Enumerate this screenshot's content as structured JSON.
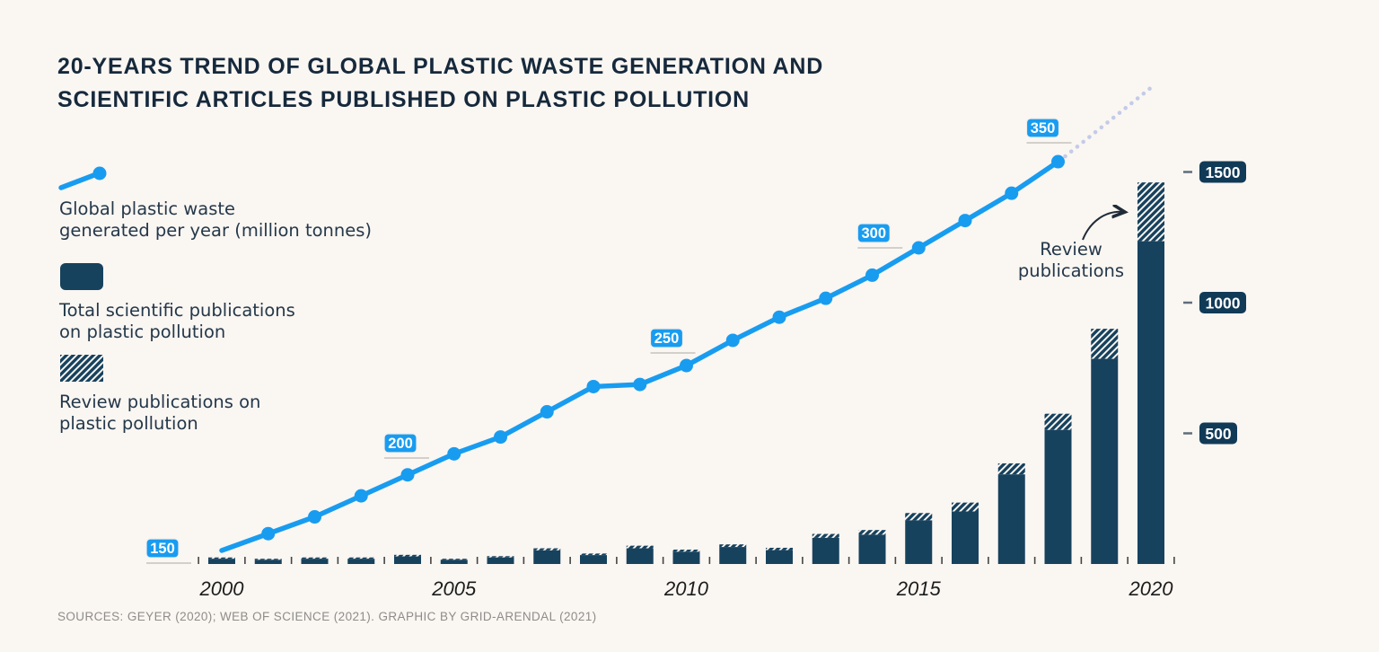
{
  "title": {
    "line1": "20-YEARS TREND OF GLOBAL PLASTIC WASTE GENERATION AND",
    "line2": "SCIENTIFIC ARTICLES PUBLISHED ON PLASTIC POLLUTION"
  },
  "legend": {
    "waste_line": {
      "line1": "Global plastic waste",
      "line2": "generated per year (million tonnes)"
    },
    "total_publications": {
      "line1": "Total scientific publications",
      "line2": "on plastic pollution"
    },
    "review_publications": {
      "line1": "Review publications on",
      "line2": "plastic pollution"
    }
  },
  "annotation": {
    "line1": "Review",
    "line2": "publications"
  },
  "sources": "SOURCES: GEYER (2020); WEB OF SCIENCE (2021). GRAPHIC BY GRID-ARENDAL (2021)",
  "colors": {
    "background": "#faf6f2",
    "accent_blue": "#189cf0",
    "bar_navy": "#17425e",
    "badge_navy": "#113a57",
    "projection_dotted": "#c3cbe8",
    "text_navy": "#24384a",
    "gridline_gray": "#c6c2be",
    "tick_dark": "#444444",
    "sources_gray": "#8f8c89"
  },
  "chart_data": {
    "type": "combo: line + stacked bar",
    "years": [
      2000,
      2001,
      2002,
      2003,
      2004,
      2005,
      2006,
      2007,
      2008,
      2009,
      2010,
      2011,
      2012,
      2013,
      2014,
      2015,
      2016,
      2017,
      2018,
      2019,
      2020
    ],
    "series": [
      {
        "name": "Global plastic waste generated per year (million tonnes)",
        "type": "line",
        "axis": "left",
        "values": [
          156,
          164,
          172,
          182,
          192,
          202,
          210,
          222,
          234,
          235,
          244,
          256,
          267,
          276,
          287,
          300,
          313,
          326,
          341,
          null,
          null
        ]
      },
      {
        "name": "Total scientific publications on plastic pollution",
        "type": "bar",
        "axis": "right",
        "values": [
          25,
          20,
          25,
          25,
          35,
          20,
          30,
          60,
          40,
          70,
          55,
          75,
          62,
          115,
          130,
          195,
          235,
          385,
          575,
          900,
          1460
        ]
      },
      {
        "name": "Review publications on plastic pollution (hatched top portion of each bar)",
        "type": "bar-cap",
        "axis": "right",
        "values": [
          5,
          4,
          5,
          5,
          6,
          4,
          5,
          8,
          6,
          10,
          8,
          10,
          9,
          15,
          18,
          28,
          34,
          42,
          62,
          115,
          225
        ]
      }
    ],
    "line_value_labels": [
      {
        "value": 150,
        "year": 2000
      },
      {
        "value": 200,
        "year": 2004
      },
      {
        "value": 250,
        "year": 2010
      },
      {
        "value": 300,
        "year": 2015
      },
      {
        "value": 350,
        "year": 2018
      }
    ],
    "right_axis_ticks": [
      1500,
      1000,
      500
    ],
    "right_axis_range": [
      0,
      1550
    ],
    "left_axis_range_million_tonnes": [
      150,
      380
    ],
    "x_tick_labels": [
      "2000",
      "2005",
      "2010",
      "2015",
      "2020"
    ],
    "projection": {
      "style": "dotted",
      "from_year": 2018,
      "from_value": 341,
      "to_year": 2020.1,
      "to_value": 378,
      "note": "dotted light-blue continuation of the waste trend line"
    },
    "grid": "none (short gridline segment under each line value badge)",
    "legend_position": "left"
  }
}
